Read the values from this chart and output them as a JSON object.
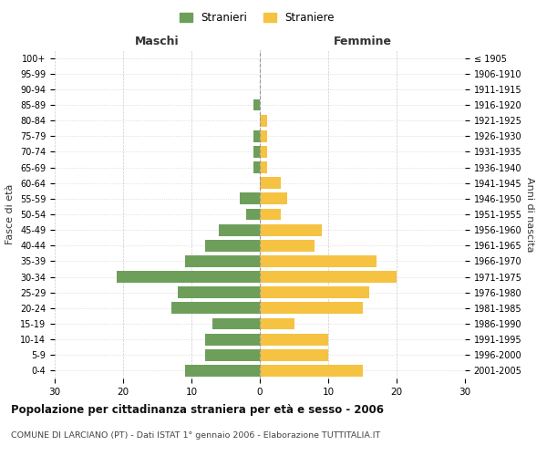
{
  "age_groups": [
    "100+",
    "95-99",
    "90-94",
    "85-89",
    "80-84",
    "75-79",
    "70-74",
    "65-69",
    "60-64",
    "55-59",
    "50-54",
    "45-49",
    "40-44",
    "35-39",
    "30-34",
    "25-29",
    "20-24",
    "15-19",
    "10-14",
    "5-9",
    "0-4"
  ],
  "birth_years": [
    "≤ 1905",
    "1906-1910",
    "1911-1915",
    "1916-1920",
    "1921-1925",
    "1926-1930",
    "1931-1935",
    "1936-1940",
    "1941-1945",
    "1946-1950",
    "1951-1955",
    "1956-1960",
    "1961-1965",
    "1966-1970",
    "1971-1975",
    "1976-1980",
    "1981-1985",
    "1986-1990",
    "1991-1995",
    "1996-2000",
    "2001-2005"
  ],
  "maschi": [
    0,
    0,
    0,
    1,
    0,
    1,
    1,
    1,
    0,
    3,
    2,
    6,
    8,
    11,
    21,
    12,
    13,
    7,
    8,
    8,
    11
  ],
  "femmine": [
    0,
    0,
    0,
    0,
    1,
    1,
    1,
    1,
    3,
    4,
    3,
    9,
    8,
    17,
    20,
    16,
    15,
    5,
    10,
    10,
    15
  ],
  "male_color": "#6d9f5b",
  "female_color": "#f5c242",
  "male_label": "Stranieri",
  "female_label": "Straniere",
  "title": "Popolazione per cittadinanza straniera per età e sesso - 2006",
  "subtitle": "COMUNE DI LARCIANO (PT) - Dati ISTAT 1° gennaio 2006 - Elaborazione TUTTITALIA.IT",
  "left_header": "Maschi",
  "right_header": "Femmine",
  "left_yaxis_label": "Fasce di età",
  "right_yaxis_label": "Anni di nascita",
  "xlim": 30,
  "background_color": "#ffffff",
  "grid_color": "#cccccc"
}
